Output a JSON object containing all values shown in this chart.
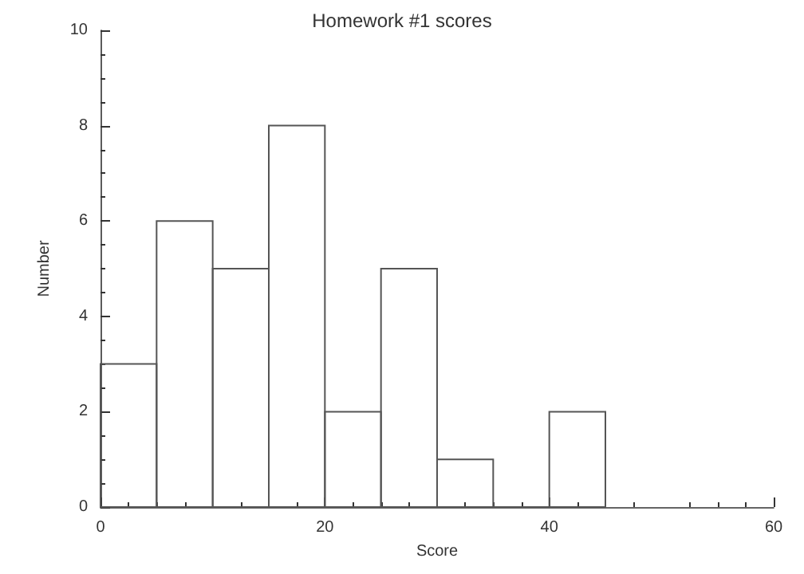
{
  "chart_data": {
    "type": "histogram",
    "title": "Homework #1 scores",
    "xlabel": "Score",
    "ylabel": "Number",
    "bins": [
      0,
      5,
      10,
      15,
      20,
      25,
      30,
      35,
      40,
      45
    ],
    "values": [
      3,
      6,
      5,
      8,
      2,
      5,
      1,
      0,
      2
    ],
    "color": "#555555",
    "xlim": [
      0,
      60
    ],
    "xticks": [
      0,
      20,
      40,
      60
    ],
    "ylim": [
      0,
      10
    ],
    "yticks": [
      0,
      2,
      4,
      6,
      8,
      10
    ],
    "grid": false
  }
}
